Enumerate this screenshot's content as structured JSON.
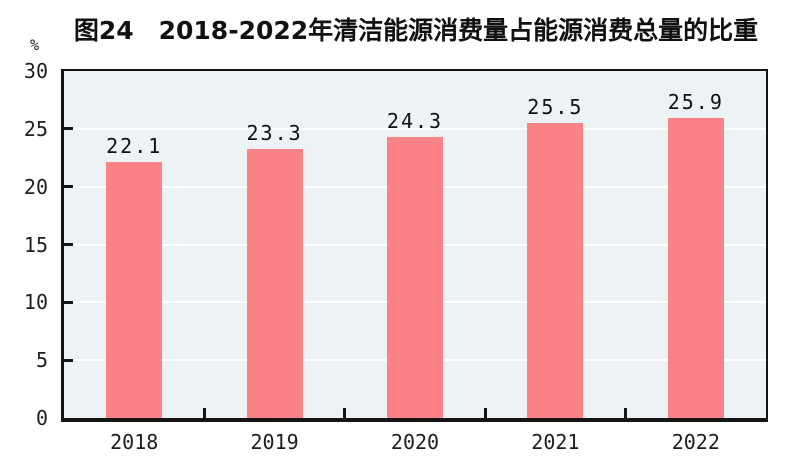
{
  "figure": {
    "unit_label": "%"
  },
  "chart_data": {
    "type": "bar",
    "title": "图24　2018-2022年清洁能源消费量占能源消费总量的比重",
    "categories": [
      "2018",
      "2019",
      "2020",
      "2021",
      "2022"
    ],
    "values": [
      22.1,
      23.3,
      24.3,
      25.5,
      25.9
    ],
    "value_labels": [
      "22.1",
      "23.3",
      "24.3",
      "25.5",
      "25.9"
    ],
    "xlabel": "",
    "ylabel": "%",
    "ylim": [
      0,
      30
    ],
    "yticks": [
      0,
      5,
      10,
      15,
      20,
      25,
      30
    ],
    "bar_color": "#fb8286",
    "plot_bg": "#edf2f5",
    "gridline_color": "#ffffff",
    "axis_color": "#151515",
    "grid": "horizontal white gridlines at each tick",
    "legend": "none"
  }
}
